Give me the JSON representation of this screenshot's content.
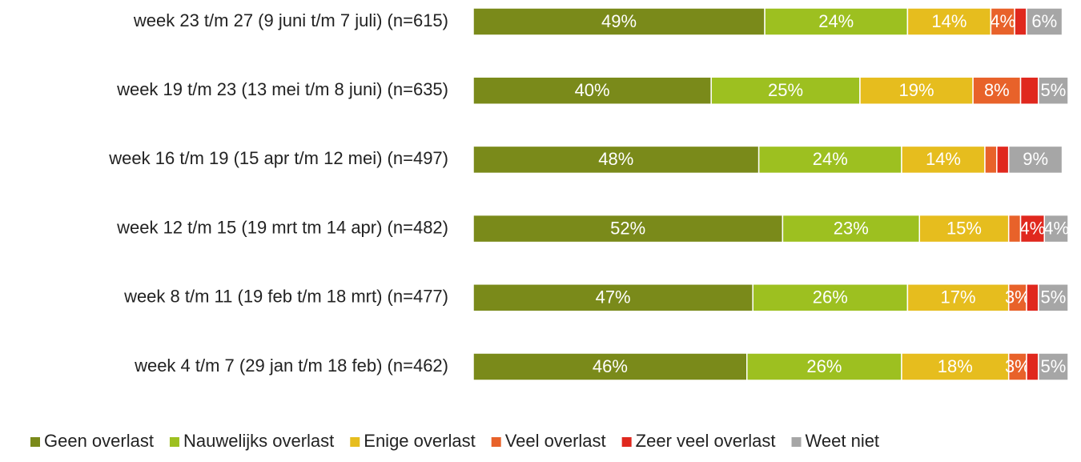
{
  "chart_data": {
    "type": "stacked-bar-horizontal",
    "categories": [
      "week 23 t/m 27 (9 juni t/m 7 juli) (n=615)",
      "week 19 t/m 23 (13 mei t/m 8 juni) (n=635)",
      "week 16 t/m 19 (15 apr t/m 12 mei) (n=497)",
      "week 12 t/m 15 (19 mrt tm 14 apr) (n=482)",
      "week 8 t/m 11 (19 feb t/m 18 mrt) (n=477)",
      "week 4 t/m 7 (29 jan t/m 18 feb) (n=462)"
    ],
    "xlim": [
      0,
      100
    ],
    "legend": "bottom",
    "series": [
      {
        "name": "Geen overlast",
        "color": "#7a8a1a",
        "values": [
          49,
          40,
          48,
          52,
          47,
          46
        ],
        "value_labels": [
          "49%",
          "40%",
          "48%",
          "52%",
          "47%",
          "46%"
        ]
      },
      {
        "name": "Nauwelijks overlast",
        "color": "#9dc020",
        "values": [
          24,
          25,
          24,
          23,
          26,
          26
        ],
        "value_labels": [
          "24%",
          "25%",
          "24%",
          "23%",
          "26%",
          "26%"
        ]
      },
      {
        "name": "Enige overlast",
        "color": "#e6bd1e",
        "values": [
          14,
          19,
          14,
          15,
          17,
          18
        ],
        "value_labels": [
          "14%",
          "19%",
          "14%",
          "15%",
          "17%",
          "18%"
        ]
      },
      {
        "name": "Veel overlast",
        "color": "#e8622a",
        "values": [
          4,
          8,
          2,
          2,
          3,
          3
        ],
        "value_labels": [
          "4%",
          "8%",
          null,
          null,
          "3%",
          "3%"
        ]
      },
      {
        "name": "Zeer veel overlast",
        "color": "#e0281e",
        "values": [
          2,
          3,
          2,
          4,
          2,
          2
        ],
        "value_labels": [
          null,
          null,
          null,
          "4%",
          null,
          null
        ]
      },
      {
        "name": "Weet niet",
        "color": "#a6a6a6",
        "values": [
          6,
          5,
          9,
          4,
          5,
          5
        ],
        "value_labels": [
          "6%",
          "5%",
          "9%",
          "4%",
          "5%",
          "5%"
        ]
      }
    ]
  }
}
